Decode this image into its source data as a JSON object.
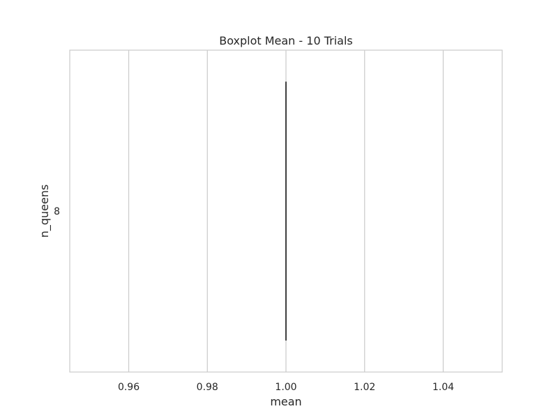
{
  "chart_data": {
    "type": "box",
    "title": "Boxplot Mean - 10 Trials",
    "xlabel": "mean",
    "ylabel": "n_queens",
    "orientation": "horizontal",
    "xlim": [
      0.945,
      1.055
    ],
    "xticks": [
      0.96,
      0.98,
      1.0,
      1.02,
      1.04
    ],
    "xtick_labels": [
      "0.96",
      "0.98",
      "1.00",
      "1.02",
      "1.04"
    ],
    "categories": [
      "8"
    ],
    "boxes": [
      {
        "category": "8",
        "min": 1.0,
        "q1": 1.0,
        "median": 1.0,
        "q3": 1.0,
        "max": 1.0
      }
    ],
    "grid": true,
    "colors": {
      "grid": "#cccccc",
      "box_line": "#3f3f3f",
      "spine": "#cccccc"
    }
  }
}
